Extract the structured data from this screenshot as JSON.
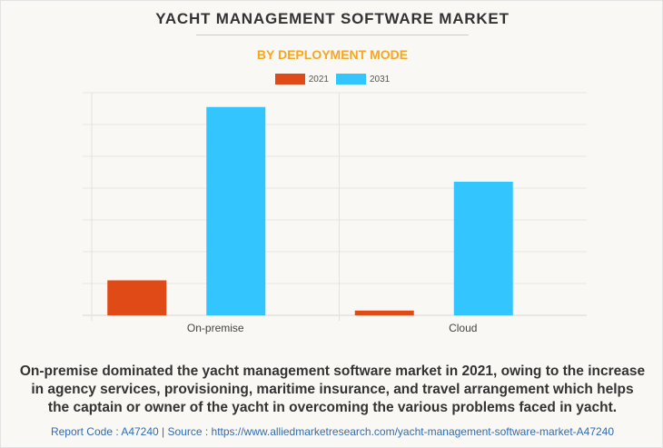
{
  "chart_data": {
    "type": "bar",
    "title": "YACHT MANAGEMENT SOFTWARE MARKET",
    "subtitle": "BY DEPLOYMENT MODE",
    "categories": [
      "On-premise",
      "Cloud"
    ],
    "series": [
      {
        "name": "2021",
        "color": "#e04a16",
        "values": [
          1.1,
          0.15
        ]
      },
      {
        "name": "2031",
        "color": "#33c5fd",
        "values": [
          6.55,
          4.2
        ]
      }
    ],
    "xlabel": "",
    "ylabel": "",
    "ylim": [
      0,
      7
    ],
    "grid": true,
    "legend_position": "top-center"
  },
  "caption": "On-premise dominated the yacht management software market in 2021, owing to the increase in agency services, provisioning, maritime insurance, and travel arrangement which helps the captain or owner of the yacht in overcoming the various problems faced in yacht.",
  "footer": "Report Code : A47240  |  Source : https://www.alliedmarketresearch.com/yacht-management-software-market-A47240"
}
